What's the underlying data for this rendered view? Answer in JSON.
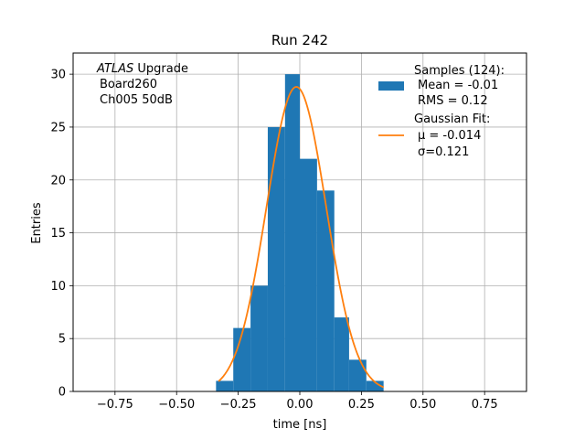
{
  "chart_data": {
    "type": "bar",
    "title": "Run 242",
    "xlabel": "time [ns]",
    "ylabel": "Entries",
    "xlim": [
      -0.92,
      0.92
    ],
    "ylim": [
      0,
      32
    ],
    "grid": true,
    "xticks": [
      -0.75,
      -0.5,
      -0.25,
      0.0,
      0.25,
      0.5,
      0.75
    ],
    "xtick_labels": [
      "−0.75",
      "−0.50",
      "−0.25",
      "0.00",
      "0.25",
      "0.50",
      "0.75"
    ],
    "yticks": [
      0,
      5,
      10,
      15,
      20,
      25,
      30
    ],
    "ytick_labels": [
      "0",
      "5",
      "10",
      "15",
      "20",
      "25",
      "30"
    ],
    "histogram": {
      "color": "#1f77b4",
      "bin_edges": [
        -0.34,
        -0.27,
        -0.2,
        -0.13,
        -0.06,
        0.0,
        0.07,
        0.14,
        0.2,
        0.27,
        0.34
      ],
      "counts": [
        1,
        6,
        10,
        25,
        30,
        22,
        19,
        7,
        3,
        1
      ],
      "legend": [
        "Samples (124):",
        "Mean = -0.01",
        "RMS = 0.12"
      ]
    },
    "gaussian_fit": {
      "color": "#ff7f0e",
      "amplitude": 28.8,
      "mu": -0.014,
      "sigma": 0.121,
      "x_range": [
        -0.33,
        0.34
      ],
      "legend": [
        "Gaussian Fit:",
        "μ = -0.014",
        "σ=0.121"
      ]
    },
    "legend_position": "top-right",
    "annotation": {
      "italic_part": "ATLAS",
      "rest": " Upgrade",
      "lines": [
        "Board260",
        "Ch005 50dB"
      ],
      "position": "top-left"
    }
  },
  "colors": {
    "bar": "#1f77b4",
    "fit": "#ff7f0e",
    "grid": "#b0b0b0"
  }
}
